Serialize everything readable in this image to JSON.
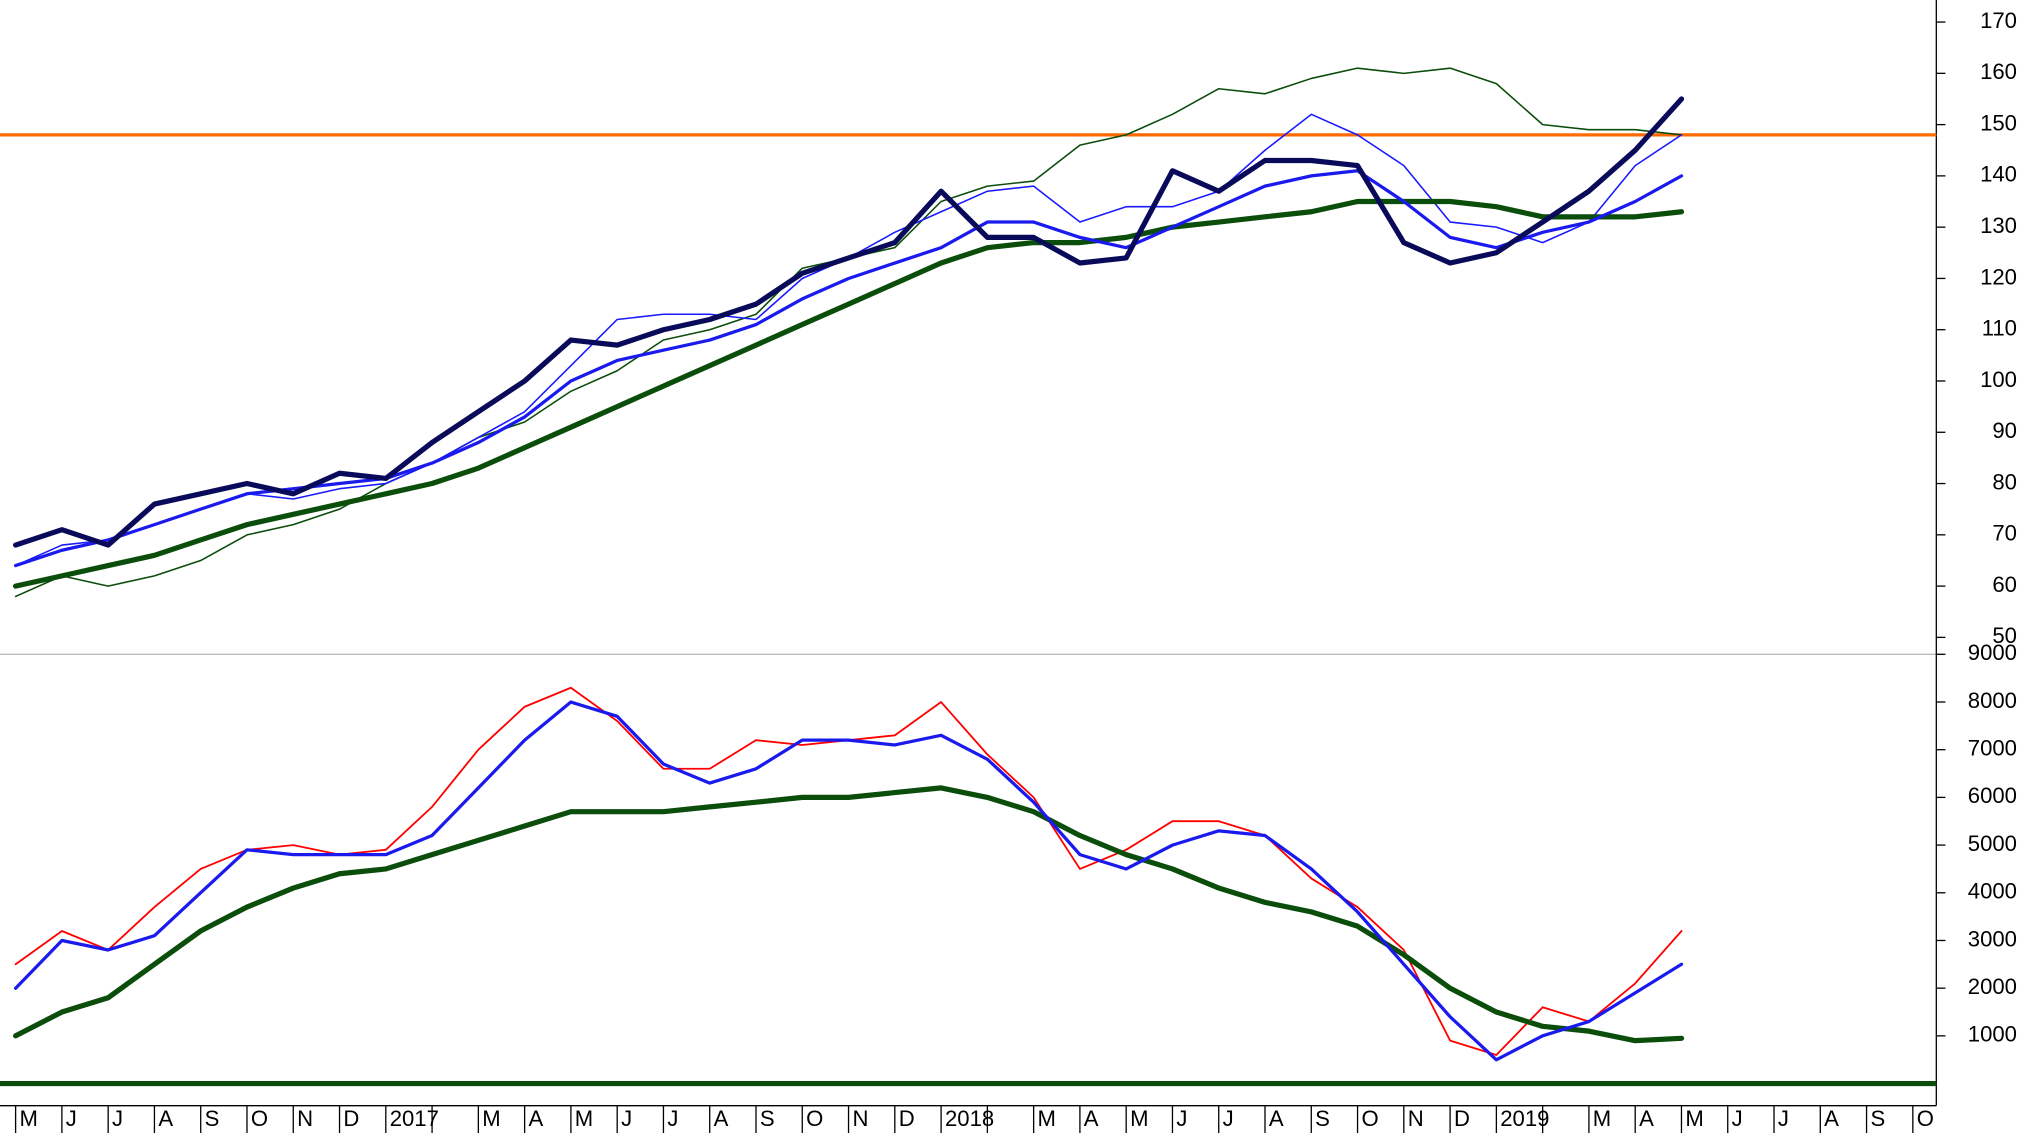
{
  "chart_data": [
    {
      "type": "line",
      "ylim": [
        46.7,
        174.3
      ],
      "yticks": [
        50,
        60,
        70,
        80,
        90,
        100,
        110,
        120,
        130,
        140,
        150,
        160,
        170
      ],
      "hlines": [
        {
          "value": 148,
          "color": "#ff6a00"
        }
      ],
      "series": [
        {
          "color": "#0b4d0b",
          "width": 1.2,
          "values": [
            58,
            62,
            60,
            62,
            65,
            70,
            72,
            75,
            80,
            84,
            89,
            92,
            98,
            102,
            108,
            110,
            113,
            122,
            124,
            126,
            135,
            138,
            139,
            146,
            148,
            152,
            157,
            156,
            159,
            161,
            160,
            161,
            158,
            150,
            149,
            149,
            148,
            null,
            null,
            null,
            null,
            null
          ]
        },
        {
          "color": "#1a1aff",
          "width": 1.2,
          "values": [
            64,
            68,
            69,
            72,
            75,
            78,
            77,
            79,
            80,
            84,
            89,
            94,
            103,
            112,
            113,
            113,
            112,
            120,
            124,
            129,
            133,
            137,
            138,
            131,
            134,
            134,
            137,
            145,
            152,
            148,
            142,
            131,
            130,
            127,
            131,
            142,
            148,
            null,
            null,
            null,
            null,
            null
          ]
        },
        {
          "color": "#0b4d0b",
          "width": 4,
          "values": [
            60,
            62,
            64,
            66,
            69,
            72,
            74,
            76,
            78,
            80,
            83,
            87,
            91,
            95,
            99,
            103,
            107,
            111,
            115,
            119,
            123,
            126,
            127,
            127,
            128,
            130,
            131,
            132,
            133,
            135,
            135,
            135,
            134,
            132,
            132,
            132,
            133,
            null,
            null,
            null,
            null,
            null
          ]
        },
        {
          "color": "#1a1aee",
          "width": 2.5,
          "values": [
            64,
            67,
            69,
            72,
            75,
            78,
            79,
            80,
            81,
            84,
            88,
            93,
            100,
            104,
            106,
            108,
            111,
            116,
            120,
            123,
            126,
            131,
            131,
            128,
            126,
            130,
            134,
            138,
            140,
            141,
            135,
            128,
            126,
            129,
            131,
            135,
            140,
            null,
            null,
            null,
            null,
            null
          ]
        },
        {
          "color": "#0a0a5a",
          "width": 4,
          "values": [
            68,
            71,
            68,
            76,
            78,
            80,
            78,
            82,
            81,
            88,
            94,
            100,
            108,
            107,
            110,
            112,
            115,
            121,
            124,
            127,
            137,
            128,
            128,
            123,
            124,
            141,
            137,
            143,
            143,
            142,
            127,
            123,
            125,
            131,
            137,
            145,
            155,
            null,
            null,
            null,
            null,
            null
          ]
        }
      ]
    },
    {
      "type": "line",
      "ylim": [
        0,
        9000
      ],
      "yticks": [
        1000,
        2000,
        3000,
        4000,
        5000,
        6000,
        7000,
        8000,
        9000
      ],
      "hlines": [
        {
          "value": 0,
          "color": "#0b4d0b"
        }
      ],
      "categories": [
        "M",
        "J",
        "J",
        "A",
        "S",
        "O",
        "N",
        "D",
        "2017",
        null,
        "M",
        "A",
        "M",
        "J",
        "J",
        "A",
        "S",
        "O",
        "N",
        "D",
        "2018",
        null,
        "M",
        "A",
        "M",
        "J",
        "J",
        "A",
        "S",
        "O",
        "N",
        "D",
        "2019",
        null,
        "M",
        "A",
        "M",
        "J",
        "J",
        "A",
        "S",
        "O"
      ],
      "series": [
        {
          "color": "#ff0000",
          "width": 1.4,
          "values": [
            2500,
            3200,
            2800,
            3700,
            4500,
            4900,
            5000,
            4800,
            4900,
            5800,
            7000,
            7900,
            8300,
            7600,
            6600,
            6600,
            7200,
            7100,
            7200,
            7300,
            8000,
            6900,
            6000,
            4500,
            4900,
            5500,
            5500,
            5200,
            4300,
            3700,
            2800,
            900,
            600,
            1600,
            1300,
            2100,
            3200,
            null,
            null,
            null,
            null,
            null
          ]
        },
        {
          "color": "#0b4d0b",
          "width": 4,
          "values": [
            1000,
            1500,
            1800,
            2500,
            3200,
            3700,
            4100,
            4400,
            4500,
            4800,
            5100,
            5400,
            5700,
            5700,
            5700,
            5800,
            5900,
            6000,
            6000,
            6100,
            6200,
            6000,
            5700,
            5200,
            4800,
            4500,
            4100,
            3800,
            3600,
            3300,
            2700,
            2000,
            1500,
            1200,
            1100,
            900,
            950,
            null,
            null,
            null,
            null,
            null
          ]
        },
        {
          "color": "#1a1aee",
          "width": 2.5,
          "values": [
            2000,
            3000,
            2800,
            3100,
            4000,
            4900,
            4800,
            4800,
            4800,
            5200,
            6200,
            7200,
            8000,
            7700,
            6700,
            6300,
            6600,
            7200,
            7200,
            7100,
            7300,
            6800,
            5900,
            4800,
            4500,
            5000,
            5300,
            5200,
            4500,
            3600,
            2500,
            1400,
            500,
            1000,
            1300,
            1900,
            2500,
            null,
            null,
            null,
            null,
            null
          ]
        }
      ]
    }
  ]
}
